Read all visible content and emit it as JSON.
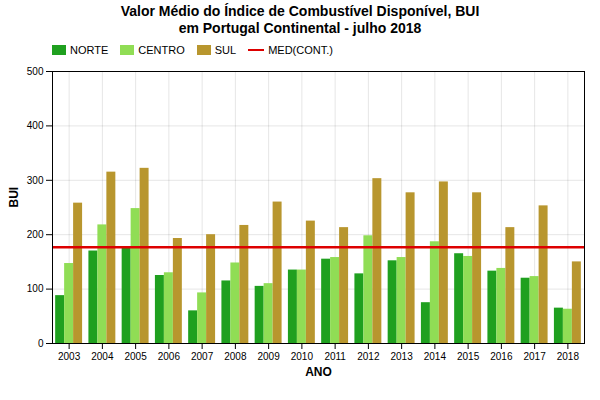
{
  "chart_data": {
    "type": "bar",
    "title": "Valor Médio do Índice de Combustível Disponível, BUI\nem Portugal Continental - julho 2018",
    "x_label": "ANO",
    "y_label": "BUI",
    "categories": [
      "2003",
      "2004",
      "2005",
      "2006",
      "2007",
      "2008",
      "2009",
      "2010",
      "2011",
      "2012",
      "2013",
      "2014",
      "2015",
      "2016",
      "2017",
      "2018"
    ],
    "series": [
      {
        "name": "NORTE",
        "color": "#1fa01f",
        "values": [
          88,
          170,
          175,
          125,
          60,
          115,
          105,
          135,
          155,
          128,
          152,
          75,
          165,
          133,
          120,
          65
        ]
      },
      {
        "name": "CENTRO",
        "color": "#90dd55",
        "values": [
          147,
          218,
          248,
          130,
          93,
          148,
          110,
          135,
          158,
          198,
          158,
          187,
          160,
          138,
          123,
          63
        ]
      },
      {
        "name": "SUL",
        "color": "#b8962e",
        "values": [
          258,
          315,
          322,
          193,
          200,
          217,
          260,
          225,
          213,
          303,
          277,
          297,
          277,
          213,
          253,
          150
        ]
      }
    ],
    "hline": {
      "name": "MED(CONT.)",
      "value": 177,
      "color": "#dd0000"
    },
    "ylim": [
      0,
      500
    ],
    "yticks": [
      0,
      100,
      200,
      300,
      400,
      500
    ],
    "grid": true,
    "legend": "upper left"
  }
}
